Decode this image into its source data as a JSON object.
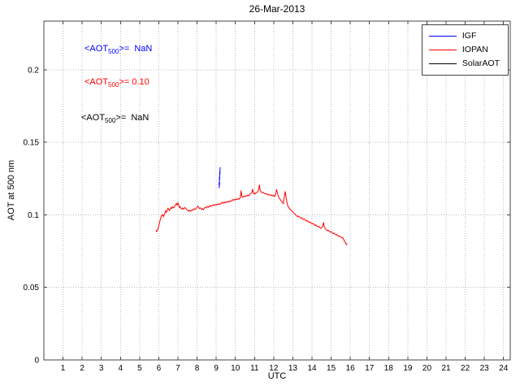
{
  "chart_data": {
    "type": "line",
    "title": "26-Mar-2013",
    "xlabel": "UTC",
    "ylabel": "AOT at 500 nm",
    "xlim": [
      0,
      24.35
    ],
    "ylim": [
      0,
      0.2335
    ],
    "xticks": [
      1,
      2,
      3,
      4,
      5,
      6,
      7,
      8,
      9,
      10,
      11,
      12,
      13,
      14,
      15,
      16,
      17,
      18,
      19,
      20,
      21,
      22,
      23,
      24
    ],
    "yticks": [
      0,
      0.05,
      0.1,
      0.15,
      0.2
    ],
    "ytick_labels": [
      "0",
      "0.05",
      "0.1",
      "0.15",
      "0.2"
    ],
    "grid": true,
    "legend_position": "top-right",
    "series": [
      {
        "name": "IGF",
        "color": "#0000ff",
        "points": [
          [
            9.15,
            0.1185
          ],
          [
            9.18,
            0.1225
          ],
          [
            9.14,
            0.1205
          ],
          [
            9.19,
            0.1262
          ],
          [
            9.16,
            0.124
          ],
          [
            9.2,
            0.1298
          ],
          [
            9.17,
            0.1275
          ],
          [
            9.21,
            0.1328
          ]
        ]
      },
      {
        "name": "IOPAN",
        "color": "#ff0000",
        "points": [
          [
            5.85,
            0.0895
          ],
          [
            5.88,
            0.0885
          ],
          [
            5.92,
            0.0892
          ],
          [
            5.96,
            0.0902
          ],
          [
            6.0,
            0.0925
          ],
          [
            6.05,
            0.0952
          ],
          [
            6.1,
            0.0978
          ],
          [
            6.15,
            0.0996
          ],
          [
            6.2,
            0.1002
          ],
          [
            6.24,
            0.0988
          ],
          [
            6.28,
            0.0998
          ],
          [
            6.32,
            0.1012
          ],
          [
            6.36,
            0.1028
          ],
          [
            6.4,
            0.1018
          ],
          [
            6.44,
            0.1032
          ],
          [
            6.48,
            0.1045
          ],
          [
            6.52,
            0.1036
          ],
          [
            6.56,
            0.103
          ],
          [
            6.6,
            0.1042
          ],
          [
            6.64,
            0.105
          ],
          [
            6.68,
            0.1044
          ],
          [
            6.72,
            0.1055
          ],
          [
            6.76,
            0.1048
          ],
          [
            6.8,
            0.1052
          ],
          [
            6.84,
            0.1062
          ],
          [
            6.88,
            0.107
          ],
          [
            6.92,
            0.1078
          ],
          [
            6.96,
            0.1068
          ],
          [
            7.0,
            0.1082
          ],
          [
            7.04,
            0.1065
          ],
          [
            7.08,
            0.105
          ],
          [
            7.12,
            0.1056
          ],
          [
            7.16,
            0.1044
          ],
          [
            7.2,
            0.104
          ],
          [
            7.24,
            0.1047
          ],
          [
            7.28,
            0.1038
          ],
          [
            7.32,
            0.1044
          ],
          [
            7.36,
            0.105
          ],
          [
            7.4,
            0.1046
          ],
          [
            7.44,
            0.104
          ],
          [
            7.48,
            0.1034
          ],
          [
            7.52,
            0.103
          ],
          [
            7.56,
            0.1026
          ],
          [
            7.6,
            0.1031
          ],
          [
            7.64,
            0.1024
          ],
          [
            7.68,
            0.1028
          ],
          [
            7.72,
            0.1034
          ],
          [
            7.76,
            0.103
          ],
          [
            7.8,
            0.1036
          ],
          [
            7.84,
            0.1042
          ],
          [
            7.88,
            0.1036
          ],
          [
            7.92,
            0.104
          ],
          [
            7.96,
            0.1046
          ],
          [
            8.0,
            0.1056
          ],
          [
            8.04,
            0.106
          ],
          [
            8.08,
            0.105
          ],
          [
            8.12,
            0.1044
          ],
          [
            8.16,
            0.1048
          ],
          [
            8.2,
            0.1042
          ],
          [
            8.24,
            0.1038
          ],
          [
            8.28,
            0.1044
          ],
          [
            8.32,
            0.1036
          ],
          [
            8.36,
            0.1042
          ],
          [
            8.4,
            0.1048
          ],
          [
            8.44,
            0.1054
          ],
          [
            8.48,
            0.1048
          ],
          [
            8.52,
            0.1054
          ],
          [
            8.56,
            0.1058
          ],
          [
            8.6,
            0.1052
          ],
          [
            8.64,
            0.1058
          ],
          [
            8.68,
            0.1064
          ],
          [
            8.72,
            0.1058
          ],
          [
            8.76,
            0.1062
          ],
          [
            8.8,
            0.1066
          ],
          [
            8.84,
            0.107
          ],
          [
            8.88,
            0.1064
          ],
          [
            8.92,
            0.1068
          ],
          [
            8.96,
            0.1072
          ],
          [
            9.0,
            0.1068
          ],
          [
            9.05,
            0.1074
          ],
          [
            9.1,
            0.107
          ],
          [
            9.15,
            0.1076
          ],
          [
            9.2,
            0.1072
          ],
          [
            9.25,
            0.108
          ],
          [
            9.3,
            0.1086
          ],
          [
            9.35,
            0.1079
          ],
          [
            9.4,
            0.1088
          ],
          [
            9.45,
            0.1082
          ],
          [
            9.5,
            0.109
          ],
          [
            9.55,
            0.1086
          ],
          [
            9.6,
            0.1092
          ],
          [
            9.65,
            0.1088
          ],
          [
            9.7,
            0.1096
          ],
          [
            9.75,
            0.1091
          ],
          [
            9.8,
            0.1098
          ],
          [
            9.85,
            0.1104
          ],
          [
            9.9,
            0.11
          ],
          [
            9.95,
            0.1107
          ],
          [
            10.0,
            0.1102
          ],
          [
            10.05,
            0.111
          ],
          [
            10.1,
            0.1106
          ],
          [
            10.15,
            0.1112
          ],
          [
            10.2,
            0.1108
          ],
          [
            10.25,
            0.1116
          ],
          [
            10.3,
            0.1168
          ],
          [
            10.33,
            0.1128
          ],
          [
            10.38,
            0.112
          ],
          [
            10.42,
            0.1124
          ],
          [
            10.46,
            0.113
          ],
          [
            10.5,
            0.1126
          ],
          [
            10.55,
            0.1133
          ],
          [
            10.6,
            0.1129
          ],
          [
            10.65,
            0.1136
          ],
          [
            10.7,
            0.1132
          ],
          [
            10.75,
            0.114
          ],
          [
            10.8,
            0.1146
          ],
          [
            10.85,
            0.1152
          ],
          [
            10.9,
            0.1178
          ],
          [
            10.94,
            0.115
          ],
          [
            10.98,
            0.1144
          ],
          [
            11.02,
            0.115
          ],
          [
            11.06,
            0.1146
          ],
          [
            11.1,
            0.1152
          ],
          [
            11.15,
            0.1158
          ],
          [
            11.2,
            0.1164
          ],
          [
            11.25,
            0.1208
          ],
          [
            11.3,
            0.1166
          ],
          [
            11.35,
            0.1158
          ],
          [
            11.4,
            0.1152
          ],
          [
            11.45,
            0.1156
          ],
          [
            11.5,
            0.1149
          ],
          [
            11.55,
            0.1144
          ],
          [
            11.6,
            0.1148
          ],
          [
            11.65,
            0.1141
          ],
          [
            11.7,
            0.1136
          ],
          [
            11.75,
            0.1142
          ],
          [
            11.8,
            0.1137
          ],
          [
            11.85,
            0.1132
          ],
          [
            11.9,
            0.1137
          ],
          [
            11.95,
            0.113
          ],
          [
            12.0,
            0.1135
          ],
          [
            12.05,
            0.1128
          ],
          [
            12.1,
            0.114
          ],
          [
            12.15,
            0.1176
          ],
          [
            12.2,
            0.1148
          ],
          [
            12.25,
            0.1124
          ],
          [
            12.3,
            0.1114
          ],
          [
            12.35,
            0.1104
          ],
          [
            12.4,
            0.1094
          ],
          [
            12.45,
            0.1086
          ],
          [
            12.5,
            0.1078
          ],
          [
            12.55,
            0.1118
          ],
          [
            12.6,
            0.1162
          ],
          [
            12.65,
            0.1118
          ],
          [
            12.7,
            0.1078
          ],
          [
            12.75,
            0.1058
          ],
          [
            12.8,
            0.1048
          ],
          [
            12.85,
            0.104
          ],
          [
            12.9,
            0.1033
          ],
          [
            12.95,
            0.1026
          ],
          [
            13.0,
            0.102
          ],
          [
            13.05,
            0.1013
          ],
          [
            13.1,
            0.1006
          ],
          [
            13.15,
            0.0999
          ],
          [
            13.2,
            0.0994
          ],
          [
            13.25,
            0.0987
          ],
          [
            13.3,
            0.0991
          ],
          [
            13.35,
            0.0984
          ],
          [
            13.4,
            0.0977
          ],
          [
            13.45,
            0.0981
          ],
          [
            13.5,
            0.0974
          ],
          [
            13.55,
            0.0967
          ],
          [
            13.6,
            0.0971
          ],
          [
            13.65,
            0.0964
          ],
          [
            13.7,
            0.0957
          ],
          [
            13.75,
            0.0961
          ],
          [
            13.8,
            0.0954
          ],
          [
            13.85,
            0.0947
          ],
          [
            13.9,
            0.0951
          ],
          [
            13.95,
            0.0944
          ],
          [
            14.0,
            0.0937
          ],
          [
            14.05,
            0.0941
          ],
          [
            14.1,
            0.0934
          ],
          [
            14.15,
            0.0927
          ],
          [
            14.2,
            0.0931
          ],
          [
            14.25,
            0.0924
          ],
          [
            14.3,
            0.0917
          ],
          [
            14.35,
            0.0921
          ],
          [
            14.4,
            0.0914
          ],
          [
            14.45,
            0.0907
          ],
          [
            14.5,
            0.0911
          ],
          [
            14.55,
            0.0919
          ],
          [
            14.6,
            0.0948
          ],
          [
            14.65,
            0.0914
          ],
          [
            14.7,
            0.0904
          ],
          [
            14.75,
            0.0897
          ],
          [
            14.8,
            0.0891
          ],
          [
            14.85,
            0.0894
          ],
          [
            14.9,
            0.0887
          ],
          [
            14.95,
            0.0881
          ],
          [
            15.0,
            0.0884
          ],
          [
            15.05,
            0.0877
          ],
          [
            15.1,
            0.0871
          ],
          [
            15.15,
            0.0874
          ],
          [
            15.2,
            0.0867
          ],
          [
            15.25,
            0.0861
          ],
          [
            15.3,
            0.0864
          ],
          [
            15.35,
            0.0857
          ],
          [
            15.4,
            0.0851
          ],
          [
            15.45,
            0.0854
          ],
          [
            15.5,
            0.0847
          ],
          [
            15.55,
            0.0841
          ],
          [
            15.6,
            0.0844
          ],
          [
            15.65,
            0.0831
          ],
          [
            15.7,
            0.0818
          ],
          [
            15.75,
            0.0806
          ],
          [
            15.8,
            0.0795
          ],
          [
            15.84,
            0.0803
          ]
        ]
      },
      {
        "name": "SolarAOT",
        "color": "#000000",
        "points": []
      }
    ]
  },
  "annotations": [
    {
      "prefix": "<AOT",
      "sub": "500",
      "suffix": ">=  NaN",
      "color": "#0000ff"
    },
    {
      "prefix": "<AOT",
      "sub": "500",
      "suffix": ">= 0.10",
      "color": "#ff0000"
    },
    {
      "prefix": "<AOT",
      "sub": "500",
      "suffix": ">=  NaN",
      "color": "#000000"
    }
  ],
  "colors": {
    "axis_box": "#444444",
    "grid": "#bbbbbb",
    "background": "#ffffff"
  }
}
